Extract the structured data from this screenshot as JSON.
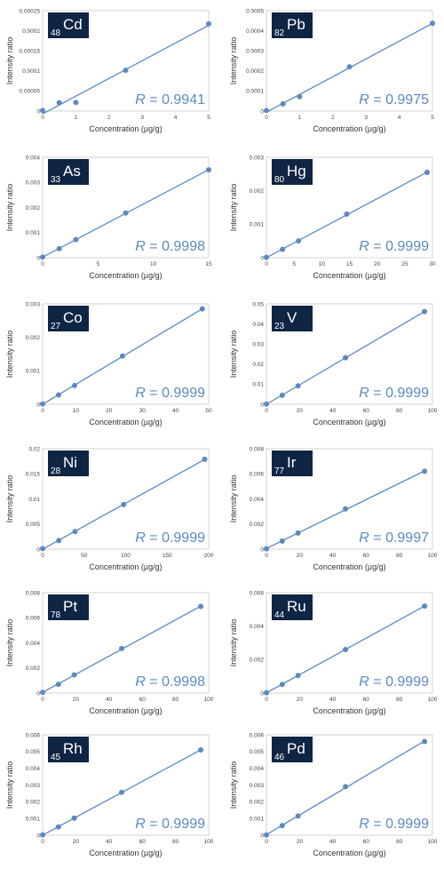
{
  "chart_data": [
    {
      "type": "scatter",
      "element": "Cd",
      "mass": "48",
      "x": [
        0,
        0.5,
        1,
        2.5,
        5
      ],
      "y": [
        1.5e-06,
        2.05e-05,
        2.15e-05,
        0.0001015,
        0.000217
      ],
      "xlim": [
        0,
        5
      ],
      "ylim": [
        0,
        0.00025
      ],
      "xticks": [
        "0",
        "1",
        "2",
        "3",
        "4",
        "5"
      ],
      "yticks": [
        "0",
        "0.00005",
        "0.0001",
        "0.00015",
        "0.0002",
        "0.00025"
      ],
      "xlabel": "Concentration (µg/g)",
      "ylabel": "Intensity ratio",
      "r_label": "R",
      "r_value": " = 0.9941",
      "grid": false,
      "trendline": true
    },
    {
      "type": "scatter",
      "element": "Pb",
      "mass": "82",
      "x": [
        0,
        0.5,
        1,
        2.5,
        5
      ],
      "y": [
        2.5e-06,
        3.6e-05,
        7.2e-05,
        0.00022,
        0.000437
      ],
      "xlim": [
        0,
        5
      ],
      "ylim": [
        0,
        0.0005
      ],
      "xticks": [
        "0",
        "1",
        "2",
        "3",
        "4",
        "5"
      ],
      "yticks": [
        "0",
        "0.0001",
        "0.0002",
        "0.0003",
        "0.0004",
        "0.0005"
      ],
      "xlabel": "Concentration (µg/g)",
      "ylabel": "Intensity ratio",
      "r_label": "R",
      "r_value": " = 0.9975",
      "grid": false,
      "trendline": true
    },
    {
      "type": "scatter",
      "element": "As",
      "mass": "33",
      "x": [
        0,
        1.5,
        3,
        7.5,
        15
      ],
      "y": [
        2e-05,
        0.00036,
        0.00072,
        0.00178,
        0.0035
      ],
      "xlim": [
        0,
        15
      ],
      "ylim": [
        0,
        0.004
      ],
      "xticks": [
        "0",
        "5",
        "10",
        "15"
      ],
      "yticks": [
        "0",
        "0.001",
        "0.002",
        "0.003",
        "0.004"
      ],
      "xlabel": "Concentration (µg/g)",
      "ylabel": "Intensity ratio",
      "r_label": "R",
      "r_value": " = 0.9998",
      "grid": false,
      "trendline": true
    },
    {
      "type": "scatter",
      "element": "Hg",
      "mass": "80",
      "x": [
        0,
        3,
        6,
        15,
        30
      ],
      "y": [
        1e-05,
        0.00025,
        0.0005,
        0.0013,
        0.00255
      ],
      "xlim": [
        0,
        31
      ],
      "ylim": [
        0,
        0.003
      ],
      "xticks": [
        "0",
        "5",
        "10",
        "15",
        "20",
        "25",
        "30"
      ],
      "yticks": [
        "0",
        "0.001",
        "0.002",
        "0.003"
      ],
      "xlabel": "Concentration (µg/g)",
      "ylabel": "Intensity ratio",
      "r_label": "R",
      "r_value": " = 0.9999",
      "grid": false,
      "trendline": true
    },
    {
      "type": "scatter",
      "element": "Co",
      "mass": "27",
      "x": [
        0,
        5,
        10,
        25,
        50
      ],
      "y": [
        1e-05,
        0.00028,
        0.00056,
        0.00144,
        0.00285
      ],
      "xlim": [
        0,
        52
      ],
      "ylim": [
        0,
        0.003
      ],
      "xticks": [
        "0",
        "10",
        "20",
        "30",
        "40",
        "50"
      ],
      "yticks": [
        "0",
        "0.001",
        "0.002",
        "0.003"
      ],
      "xlabel": "Concentration (µg/g)",
      "ylabel": "Intensity ratio",
      "r_label": "R",
      "r_value": " = 0.9999",
      "grid": false,
      "trendline": true
    },
    {
      "type": "scatter",
      "element": "V",
      "mass": "23",
      "x": [
        0,
        10,
        20,
        50,
        100
      ],
      "y": [
        0.0001,
        0.0045,
        0.0092,
        0.0232,
        0.0462
      ],
      "xlim": [
        0,
        105
      ],
      "ylim": [
        0,
        0.05
      ],
      "xticks": [
        "0",
        "20",
        "40",
        "60",
        "80",
        "100"
      ],
      "yticks": [
        "0",
        "0.01",
        "0.02",
        "0.03",
        "0.04",
        "0.05"
      ],
      "xlabel": "Concentration (µg/g)",
      "ylabel": "Intensity ratio",
      "r_label": "R",
      "r_value": " = 0.9999",
      "grid": false,
      "trendline": true
    },
    {
      "type": "scatter",
      "element": "Ni",
      "mass": "28",
      "x": [
        0,
        20,
        40,
        100,
        200
      ],
      "y": [
        0.0001,
        0.0017,
        0.0035,
        0.0089,
        0.0179
      ],
      "xlim": [
        0,
        205
      ],
      "ylim": [
        0,
        0.02
      ],
      "xticks": [
        "0",
        "50",
        "100",
        "150",
        "200"
      ],
      "yticks": [
        "0",
        "0.005",
        "0.01",
        "0.015",
        "0.02"
      ],
      "xlabel": "Concentration (µg/g)",
      "ylabel": "Intensity ratio",
      "r_label": "R",
      "r_value": " = 0.9999",
      "grid": false,
      "trendline": true
    },
    {
      "type": "scatter",
      "element": "Ir",
      "mass": "77",
      "x": [
        0,
        10,
        20,
        50,
        100
      ],
      "y": [
        3e-05,
        0.00065,
        0.00128,
        0.0032,
        0.0062
      ],
      "xlim": [
        0,
        105
      ],
      "ylim": [
        0,
        0.008
      ],
      "xticks": [
        "0",
        "20",
        "40",
        "60",
        "80",
        "100"
      ],
      "yticks": [
        "0",
        "0.002",
        "0.004",
        "0.006",
        "0.008"
      ],
      "xlabel": "Concentration (µg/g)",
      "ylabel": "Intensity ratio",
      "r_label": "R",
      "r_value": " = 0.9997",
      "grid": false,
      "trendline": true
    },
    {
      "type": "scatter",
      "element": "Pt",
      "mass": "78",
      "x": [
        0,
        10,
        20,
        50,
        100
      ],
      "y": [
        5e-05,
        0.0007,
        0.00145,
        0.00355,
        0.0069
      ],
      "xlim": [
        0,
        105
      ],
      "ylim": [
        0,
        0.008
      ],
      "xticks": [
        "0",
        "20",
        "40",
        "60",
        "80",
        "100"
      ],
      "yticks": [
        "0",
        "0.002",
        "0.004",
        "0.006",
        "0.008"
      ],
      "xlabel": "Concentration (µg/g)",
      "ylabel": "Intensity ratio",
      "r_label": "R",
      "r_value": " = 0.9998",
      "grid": false,
      "trendline": true
    },
    {
      "type": "scatter",
      "element": "Ru",
      "mass": "44",
      "x": [
        0,
        10,
        20,
        50,
        100
      ],
      "y": [
        2e-05,
        0.00052,
        0.00105,
        0.0026,
        0.0052
      ],
      "xlim": [
        0,
        105
      ],
      "ylim": [
        0,
        0.006
      ],
      "xticks": [
        "0",
        "20",
        "40",
        "60",
        "80",
        "100"
      ],
      "yticks": [
        "0",
        "0.002",
        "0.004",
        "0.006"
      ],
      "xlabel": "Concentration (µg/g)",
      "ylabel": "Intensity ratio",
      "r_label": "R",
      "r_value": " = 0.9999",
      "grid": false,
      "trendline": true
    },
    {
      "type": "scatter",
      "element": "Rh",
      "mass": "45",
      "x": [
        0,
        10,
        20,
        50,
        100
      ],
      "y": [
        2e-05,
        0.0005,
        0.00102,
        0.00256,
        0.0051
      ],
      "xlim": [
        0,
        105
      ],
      "ylim": [
        0,
        0.006
      ],
      "xticks": [
        "0",
        "20",
        "40",
        "60",
        "80",
        "100"
      ],
      "yticks": [
        "0",
        "0.001",
        "0.002",
        "0.003",
        "0.004",
        "0.005",
        "0.006"
      ],
      "xlabel": "Concentration (µg/g)",
      "ylabel": "Intensity ratio",
      "r_label": "R",
      "r_value": " = 0.9999",
      "grid": false,
      "trendline": true
    },
    {
      "type": "scatter",
      "element": "Pd",
      "mass": "46",
      "x": [
        0,
        10,
        20,
        50,
        100
      ],
      "y": [
        2e-05,
        0.00058,
        0.00115,
        0.0029,
        0.0056
      ],
      "xlim": [
        0,
        105
      ],
      "ylim": [
        0,
        0.006
      ],
      "xticks": [
        "0",
        "20",
        "40",
        "60",
        "80",
        "100"
      ],
      "yticks": [
        "0",
        "0.001",
        "0.002",
        "0.003",
        "0.004",
        "0.005",
        "0.006"
      ],
      "xlabel": "Concentration (µg/g)",
      "ylabel": "Intensity ratio",
      "r_label": "R",
      "r_value": " = 0.9999",
      "grid": false,
      "trendline": true
    }
  ],
  "colors": {
    "series": "#5b89c2",
    "label_box": "#0f2544",
    "frame": "#c8c8c8"
  }
}
